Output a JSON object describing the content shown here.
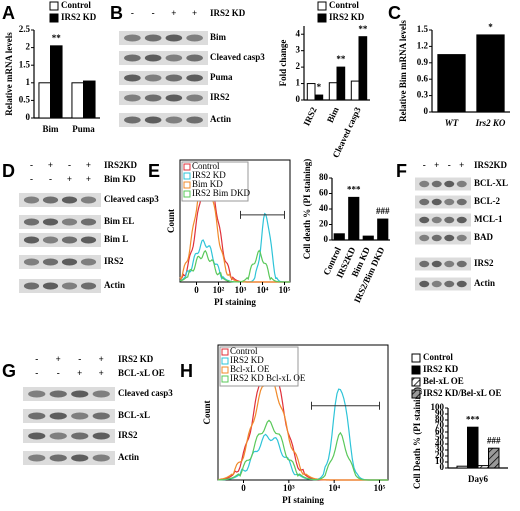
{
  "panels": [
    "A",
    "B",
    "C",
    "D",
    "E",
    "F",
    "G",
    "H"
  ],
  "chart_data": [
    {
      "type": "bar",
      "ylabel": "Relative mRNA levels",
      "categories": [
        "Bim",
        "Puma"
      ],
      "series": [
        {
          "name": "Control",
          "color": "#ffffff",
          "values": [
            1,
            1
          ],
          "significance": [
            null,
            null
          ]
        },
        {
          "name": "IRS2 KD",
          "color": "#000000",
          "values": [
            2.05,
            1.05
          ],
          "significance": [
            "**",
            null
          ]
        }
      ],
      "ylim": [
        0,
        2.5
      ],
      "yticks": [
        0,
        0.5,
        1,
        1.5,
        2,
        2.5
      ]
    },
    {
      "type": "bar",
      "ylabel": "Fold change",
      "categories": [
        "IRS2",
        "Bim",
        "Cleaved casp3"
      ],
      "series": [
        {
          "name": "Control",
          "color": "#ffffff",
          "values": [
            1,
            1.05,
            1.15
          ],
          "significance": [
            null,
            null,
            null
          ]
        },
        {
          "name": "IRS2 KD",
          "color": "#000000",
          "values": [
            0.3,
            2.0,
            3.85
          ],
          "significance": [
            "*",
            "**",
            "**"
          ]
        }
      ],
      "ylim": [
        0,
        4.5
      ],
      "yticks": [
        0,
        1,
        2,
        3,
        4
      ]
    },
    {
      "type": "bar",
      "ylabel": "Relative Bim mRNA levels",
      "categories": [
        "WT",
        "Irs2 KO"
      ],
      "series": [
        {
          "color": "#000000",
          "values": [
            1.05,
            1.41
          ],
          "significance": [
            null,
            "*"
          ]
        }
      ],
      "ylim": [
        0,
        1.5
      ],
      "yticks": [
        0,
        0.3,
        0.6,
        0.9,
        1.2,
        1.5
      ]
    },
    {
      "type": "bar",
      "ylabel": "Cell death % (PI staining)",
      "categories": [
        "Control",
        "IRS2KD",
        "Bim KD",
        "IRS2/Bim DKD"
      ],
      "series": [
        {
          "color": "#000000",
          "values": [
            8,
            55,
            5,
            27
          ],
          "significance": [
            null,
            "***",
            null,
            "###"
          ]
        }
      ],
      "ylim": [
        0,
        80
      ],
      "yticks": [
        0,
        20,
        40,
        60,
        80
      ]
    },
    {
      "type": "bar",
      "ylabel": "Cell Death % (PI staining)",
      "categories": [
        "Day6"
      ],
      "series": [
        {
          "name": "Control",
          "color": "#ffffff",
          "values": [
            3
          ],
          "significance": [
            null
          ]
        },
        {
          "name": "IRS2 KD",
          "color": "#000000",
          "values": [
            68
          ],
          "significance": [
            "***"
          ]
        },
        {
          "name": "Bel-xL OE",
          "color": "#ffffff",
          "hatch": true,
          "values": [
            4
          ],
          "significance": [
            null
          ]
        },
        {
          "name": "IRS2 KD/Bel-xL OE",
          "color": "#999999",
          "hatch": true,
          "values": [
            33
          ],
          "significance": [
            "###"
          ]
        }
      ],
      "ylim": [
        0,
        100
      ],
      "yticks": [
        0,
        10,
        20,
        30,
        40,
        50,
        60,
        70,
        80,
        90,
        100
      ]
    }
  ],
  "blots": [
    {
      "conditions": [
        {
          "label": "IRS2 KD",
          "lanes": [
            "-",
            "-",
            "+",
            "+"
          ]
        }
      ],
      "rows": [
        "Bim",
        "Cleaved casp3",
        "Puma",
        "IRS2",
        "Actin"
      ]
    },
    {
      "conditions": [
        {
          "label": "IRS2KD",
          "lanes": [
            "-",
            "+",
            "-",
            "+"
          ]
        },
        {
          "label": "Bim KD",
          "lanes": [
            "-",
            "-",
            "+",
            "+"
          ]
        }
      ],
      "rows": [
        "Cleaved casp3",
        "Bim EL",
        "Bim L",
        "IRS2",
        "Actin"
      ]
    },
    {
      "conditions": [
        {
          "label": "IRS2KD",
          "lanes": [
            "-",
            "+",
            "-",
            "+"
          ]
        }
      ],
      "rows": [
        "BCL-XL",
        "BCL-2",
        "MCL-1",
        "BAD",
        "IRS2",
        "Actin"
      ]
    },
    {
      "conditions": [
        {
          "label": "IRS2 KD",
          "lanes": [
            "-",
            "+",
            "-",
            "+"
          ]
        },
        {
          "label": "BCL-xL OE",
          "lanes": [
            "-",
            "-",
            "+",
            "+"
          ]
        }
      ],
      "rows": [
        "Cleaved casp3",
        "BCL-xL",
        "IRS2",
        "Actin"
      ]
    }
  ],
  "flow": [
    {
      "ylabel": "Count",
      "xlabel": "PI staining",
      "xticks": [
        "0",
        "10²",
        "10³",
        "10⁴",
        "10⁵"
      ],
      "legend": [
        {
          "name": "Control",
          "color": "#e0303a"
        },
        {
          "name": "IRS2 KD",
          "color": "#2ec4d8"
        },
        {
          "name": "Bim KD",
          "color": "#f08a2a"
        },
        {
          "name": "IRS2 Bim DKD",
          "color": "#5ac85a"
        }
      ]
    },
    {
      "ylabel": "Count",
      "xlabel": "PI staining",
      "xticks": [
        "0",
        "10³",
        "10⁴",
        "10⁵"
      ],
      "legend": [
        {
          "name": "Control",
          "color": "#e0303a"
        },
        {
          "name": "IRS2 KD",
          "color": "#2ec4d8"
        },
        {
          "name": "Bcl-xL OE",
          "color": "#f08a2a"
        },
        {
          "name": "IRS2 KD Bcl-xL OE",
          "color": "#5ac85a"
        }
      ]
    }
  ]
}
